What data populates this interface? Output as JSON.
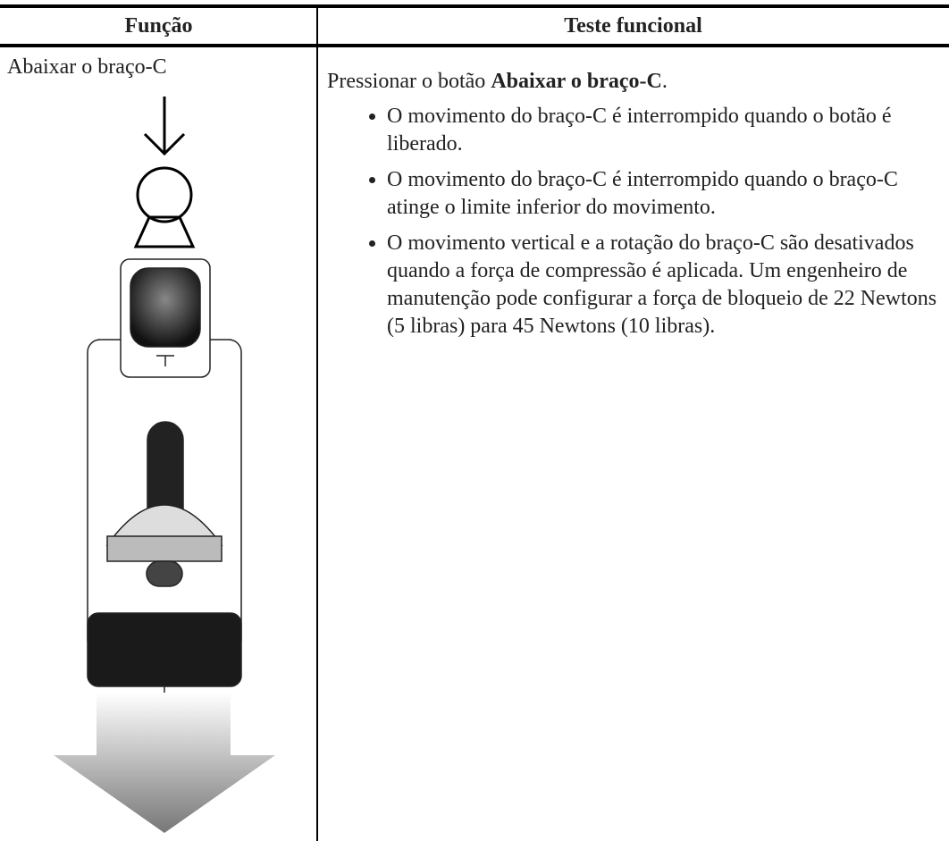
{
  "table": {
    "header": [
      "Função",
      "Teste funcional"
    ],
    "rows": [
      {
        "function": "Abaixar o braço-C",
        "test": {
          "intro": [
            "Pressionar o botão ",
            "Abaixar o braço-C",
            "."
          ],
          "bullets": [
            "O movimento do braço-C é interrompido quando o botão é liberado.",
            "O movimento do braço-C é interrompido quando o braço-C atinge o limite inferior do movimento.",
            "O movimento vertical e a rotação do braço-C são desativados quando a força de compressão é aplicada. Um engenheiro de manutenção pode configurar a força de bloqueio de 22 Newtons (5 libras) para 45 Newtons (10 libras)."
          ]
        }
      }
    ]
  }
}
